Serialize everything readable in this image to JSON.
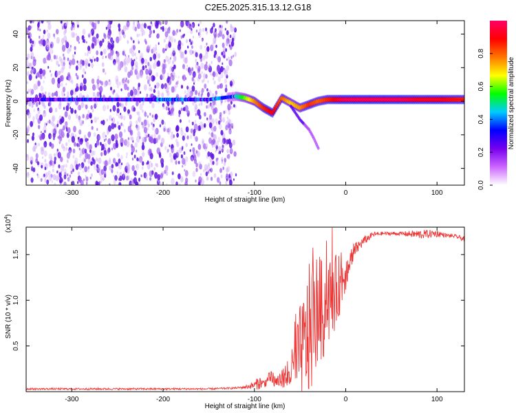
{
  "figure_title": "C2E5.2025.315.13.12.G18",
  "colors": {
    "snr_line": "#ee3333",
    "spectro_dot": "#5a10e0",
    "axis": "#000000"
  },
  "chart_data": [
    {
      "type": "heatmap",
      "title": "",
      "xlabel": "Height of straight line (km)",
      "ylabel": "Frequency (Hz)",
      "xlim": [
        -350,
        130
      ],
      "ylim": [
        -50,
        48
      ],
      "xticks": [
        -300,
        -200,
        -100,
        0,
        100
      ],
      "xtick_labels": [
        "-300",
        "-200",
        "-100",
        "0",
        "100"
      ],
      "yticks": [
        -40,
        -20,
        0,
        20,
        40
      ],
      "ytick_labels": [
        "-40",
        "-20",
        "0",
        "20",
        "40"
      ],
      "noise_region_x": [
        -350,
        -120
      ],
      "signal_track": {
        "x": [
          -350,
          -300,
          -250,
          -200,
          -150,
          -120,
          -110,
          -100,
          -90,
          -80,
          -70,
          -60,
          -50,
          -40,
          -30,
          -20,
          -10,
          0,
          20,
          40,
          60,
          80,
          100,
          130
        ],
        "freq_hz": [
          1,
          1,
          1,
          1,
          1,
          3,
          2,
          0,
          -4,
          -7,
          2,
          -1,
          -4,
          -2,
          0,
          1,
          1,
          1,
          1,
          1,
          1,
          1,
          1,
          1
        ],
        "amplitude": [
          0.25,
          0.3,
          0.3,
          0.35,
          0.3,
          0.45,
          0.6,
          0.75,
          0.85,
          0.9,
          0.8,
          0.7,
          0.75,
          0.85,
          0.8,
          0.85,
          0.9,
          0.95,
          0.95,
          0.95,
          0.95,
          0.9,
          0.9,
          0.85
        ]
      },
      "drift_branch": {
        "x": [
          -60,
          -55,
          -50,
          -45,
          -40,
          -35,
          -30
        ],
        "freq_hz": [
          -3,
          -7,
          -11,
          -14,
          -17,
          -22,
          -28
        ]
      },
      "colorbar": {
        "label": "Normalized spectral amplitude",
        "range": [
          0,
          1
        ],
        "ticks": [
          0.0,
          0.2,
          0.4,
          0.6,
          0.8
        ],
        "tick_labels": [
          "0.0",
          "0.2",
          "0.4",
          "0.6",
          "0.8"
        ],
        "colormap_stops": [
          "#ffffff",
          "#cc66ff",
          "#7700ee",
          "#0000ff",
          "#00ccff",
          "#00ff00",
          "#ffff00",
          "#ff7700",
          "#ff0000",
          "#ff0066"
        ]
      }
    },
    {
      "type": "line",
      "title": "",
      "xlabel": "Height of straight line (km)",
      "ylabel": "SNR (10 * v/v)",
      "y_multiplier_label": "(x10",
      "y_multiplier_exp": "4",
      "y_multiplier_close": ")",
      "xlim": [
        -350,
        130
      ],
      "ylim": [
        0,
        1.8
      ],
      "xticks": [
        -300,
        -200,
        -100,
        0,
        100
      ],
      "xtick_labels": [
        "-300",
        "-200",
        "-100",
        "0",
        "100"
      ],
      "yticks": [
        0.5,
        1.0,
        1.5
      ],
      "ytick_labels": [
        "0.5",
        "1.0",
        "1.5"
      ],
      "series": [
        {
          "name": "SNR",
          "x": [
            -350,
            -300,
            -250,
            -200,
            -150,
            -120,
            -110,
            -100,
            -95,
            -90,
            -85,
            -80,
            -75,
            -70,
            -65,
            -60,
            -55,
            -50,
            -45,
            -40,
            -35,
            -30,
            -25,
            -20,
            -15,
            -10,
            -5,
            0,
            5,
            10,
            20,
            30,
            40,
            60,
            80,
            100,
            110,
            120,
            130
          ],
          "y": [
            0.03,
            0.03,
            0.03,
            0.03,
            0.03,
            0.04,
            0.05,
            0.07,
            0.1,
            0.09,
            0.12,
            0.14,
            0.1,
            0.15,
            0.12,
            0.22,
            0.3,
            0.45,
            0.5,
            0.65,
            0.75,
            0.95,
            0.85,
            1.0,
            1.05,
            1.1,
            1.2,
            1.3,
            1.45,
            1.55,
            1.65,
            1.72,
            1.73,
            1.73,
            1.72,
            1.73,
            1.71,
            1.7,
            1.67
          ],
          "spread": [
            0.01,
            0.01,
            0.01,
            0.01,
            0.01,
            0.01,
            0.02,
            0.04,
            0.08,
            0.04,
            0.08,
            0.1,
            0.06,
            0.1,
            0.1,
            0.2,
            0.35,
            0.5,
            0.6,
            0.75,
            0.7,
            0.6,
            0.55,
            0.5,
            0.45,
            0.4,
            0.3,
            0.2,
            0.12,
            0.08,
            0.05,
            0.03,
            0.02,
            0.02,
            0.05,
            0.04,
            0.02,
            0.02,
            0.03
          ]
        }
      ]
    }
  ]
}
